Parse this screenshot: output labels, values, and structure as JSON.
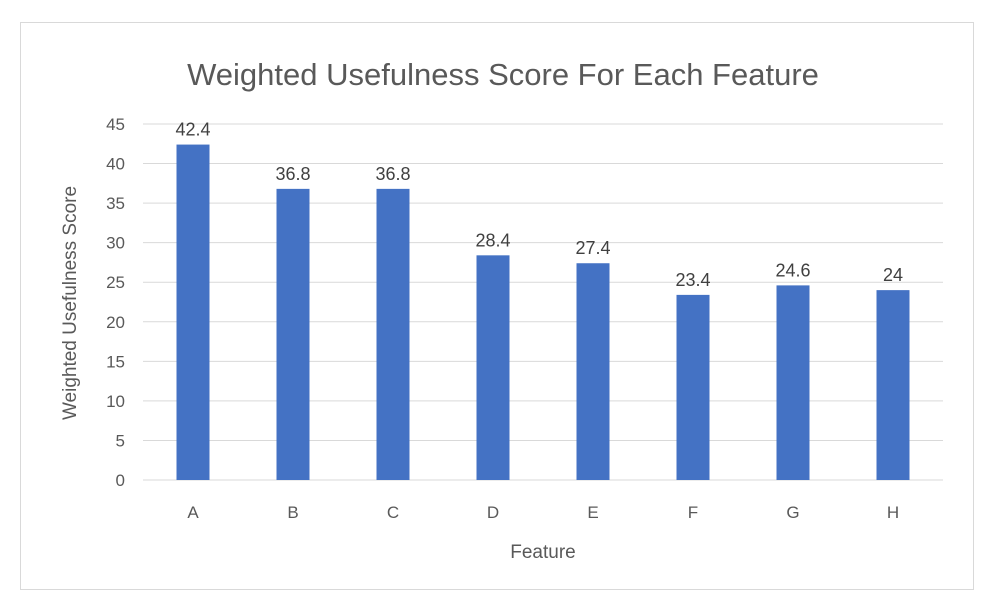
{
  "chart_data": {
    "type": "bar",
    "title": "Weighted Usefulness Score For Each Feature",
    "xlabel": "Feature",
    "ylabel": "Weighted Usefulness Score",
    "categories": [
      "A",
      "B",
      "C",
      "D",
      "E",
      "F",
      "G",
      "H"
    ],
    "values": [
      42.4,
      36.8,
      36.8,
      28.4,
      27.4,
      23.4,
      24.6,
      24
    ],
    "data_labels": [
      "42.4",
      "36.8",
      "36.8",
      "28.4",
      "27.4",
      "23.4",
      "24.6",
      "24"
    ],
    "ylim": [
      0,
      45
    ],
    "yticks": [
      0,
      5,
      10,
      15,
      20,
      25,
      30,
      35,
      40,
      45
    ],
    "grid": true,
    "legend": "none",
    "bar_color": "#4472c4"
  }
}
